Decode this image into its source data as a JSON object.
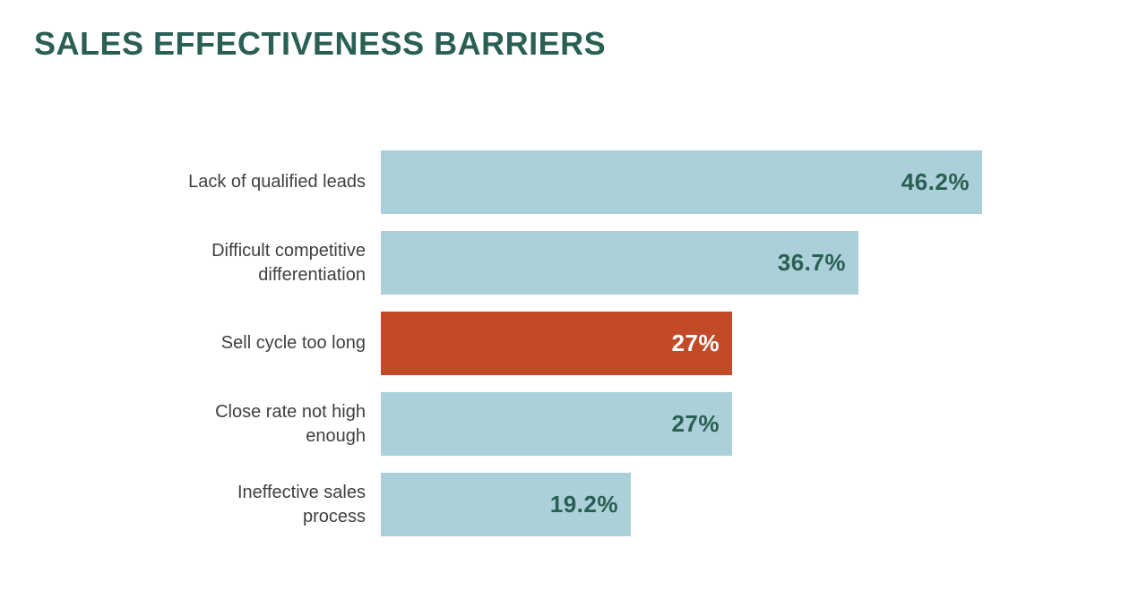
{
  "title": {
    "text": "SALES EFFECTIVENESS BARRIERS"
  },
  "colors": {
    "title_green": "#2a5f53",
    "bar_light_blue": "#acd0d9",
    "bar_highlight_red": "#c34a27",
    "label_gray": "#3f3f3f",
    "value_on_highlight": "#ffffff",
    "background": "#ffffff"
  },
  "chart_data": {
    "type": "bar",
    "orientation": "horizontal",
    "title": "SALES EFFECTIVENESS BARRIERS",
    "categories": [
      "Lack of qualified leads",
      "Difficult competitive differentiation",
      "Sell cycle too long",
      "Close rate not high enough",
      "Ineffective sales process"
    ],
    "label_lines": [
      [
        "Lack of qualified leads"
      ],
      [
        "Difficult competitive",
        "differentiation"
      ],
      [
        "Sell cycle too long"
      ],
      [
        "Close rate not high",
        "enough"
      ],
      [
        "Ineffective sales",
        "process"
      ]
    ],
    "values": [
      46.2,
      36.7,
      27,
      27,
      19.2
    ],
    "value_labels": [
      "46.2%",
      "36.7%",
      "27%",
      "27%",
      "19.2%"
    ],
    "bar_colors": [
      "#acd0d9",
      "#acd0d9",
      "#c34a27",
      "#acd0d9",
      "#acd0d9"
    ],
    "value_label_colors": [
      "#2a5f53",
      "#2a5f53",
      "#ffffff",
      "#2a5f53",
      "#2a5f53"
    ],
    "highlight_index": 2,
    "xlim": [
      0,
      46.2
    ],
    "xlabel": "",
    "ylabel": "",
    "grid": false,
    "legend": false,
    "value_label_position": "inside-end"
  }
}
